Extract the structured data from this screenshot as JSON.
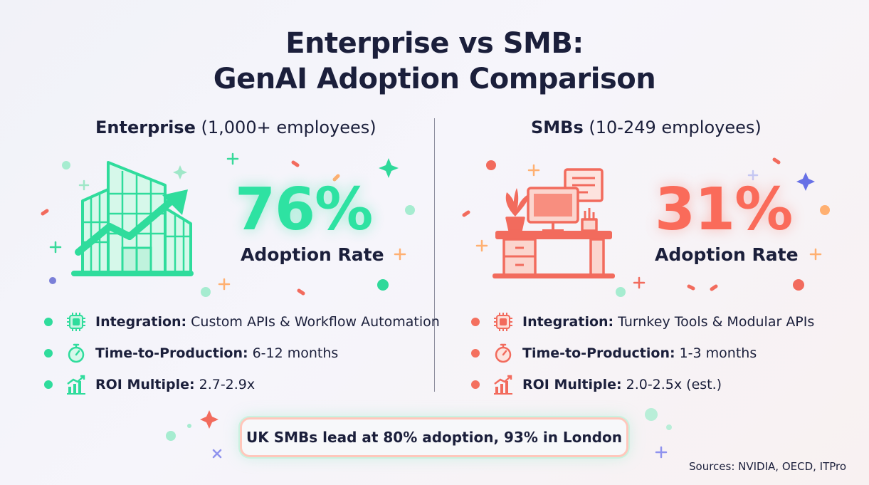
{
  "title": {
    "line1": "Enterprise vs SMB:",
    "line2": "GenAI Adoption Comparison"
  },
  "enterprise": {
    "heading_bold": "Enterprise",
    "heading_rest": "(1,000+ employees)",
    "rate": "76%",
    "rate_label": "Adoption Rate",
    "accent": "#2ee2a2",
    "bullets": [
      {
        "icon": "chip-icon",
        "label": "Integration:",
        "value": "Custom APIs & Workflow Automation"
      },
      {
        "icon": "stopwatch-icon",
        "label": "Time-to-Production:",
        "value": "6-12 months"
      },
      {
        "icon": "growth-chart-icon",
        "label": "ROI Multiple:",
        "value": "2.7-2.9x"
      }
    ]
  },
  "smb": {
    "heading_bold": "SMBs",
    "heading_rest": "(10-249 employees)",
    "rate": "31%",
    "rate_label": "Adoption Rate",
    "accent": "#fa6b5a",
    "bullets": [
      {
        "icon": "chip-icon",
        "label": "Integration:",
        "value": "Turnkey Tools & Modular APIs"
      },
      {
        "icon": "stopwatch-icon",
        "label": "Time-to-Production:",
        "value": "1-3 months"
      },
      {
        "icon": "growth-chart-icon",
        "label": "ROI Multiple:",
        "value": "2.0-2.5x (est.)"
      }
    ]
  },
  "banner": "UK SMBs lead at 80% adoption, 93% in London",
  "sources": "Sources: NVIDIA, OECD, ITPro"
}
